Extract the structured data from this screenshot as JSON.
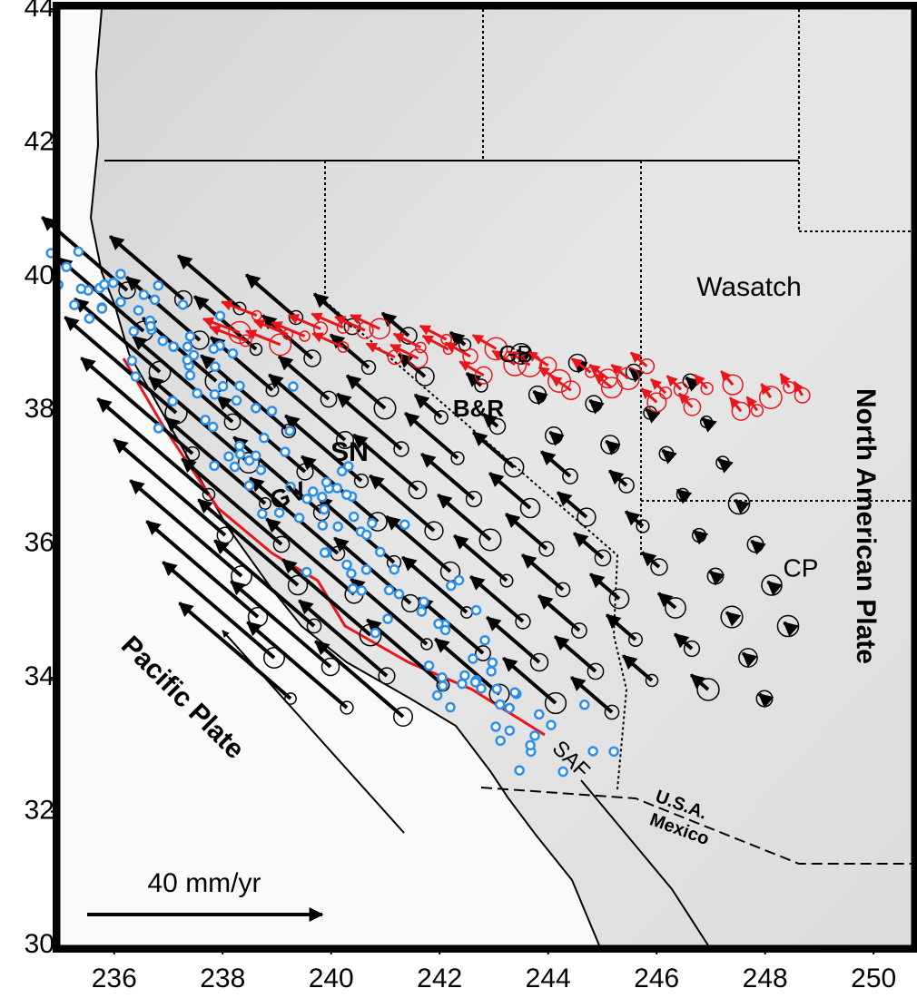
{
  "chart_data": {
    "type": "map",
    "xlim": [
      235,
      250.7
    ],
    "ylim": [
      30,
      44
    ],
    "xticks": [
      236,
      238,
      240,
      242,
      244,
      246,
      248,
      250
    ],
    "yticks": [
      30,
      32,
      34,
      36,
      38,
      40,
      42,
      44
    ],
    "annotations": [
      "Wasatch",
      "GB",
      "B&R",
      "SN",
      "GV",
      "CP",
      "SAF",
      "North American Plate",
      "Pacific Plate",
      "U.S.A.",
      "Mexico",
      "40 mm/yr"
    ]
  }
}
